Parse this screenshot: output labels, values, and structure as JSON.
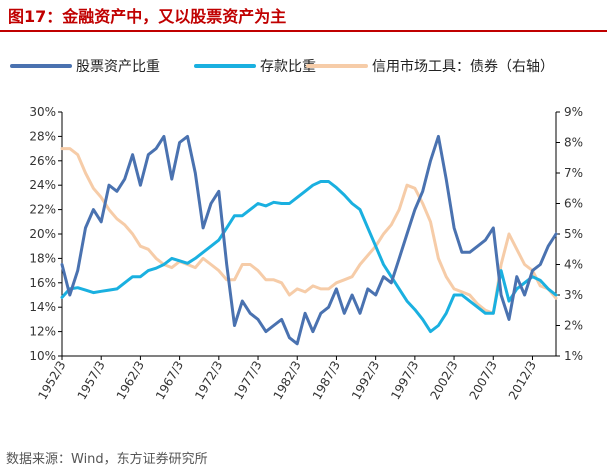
{
  "title": "图17：金融资产中，又以股票资产为主",
  "source": "数据来源：Wind，东方证券研究所",
  "chart_data": {
    "type": "line",
    "legend_position": "top",
    "grid": false,
    "x_range": [
      "1952/3",
      "2015/3"
    ],
    "x_tick_labels": [
      "1952/3",
      "1957/3",
      "1962/3",
      "1967/3",
      "1972/3",
      "1977/3",
      "1982/3",
      "1987/3",
      "1992/3",
      "1997/3",
      "2002/3",
      "2007/3",
      "2012/3"
    ],
    "y_left": {
      "min": 10,
      "max": 30,
      "step": 2,
      "tick_labels": [
        "10%",
        "12%",
        "14%",
        "16%",
        "18%",
        "20%",
        "22%",
        "24%",
        "26%",
        "28%",
        "30%"
      ]
    },
    "y_right": {
      "min": 1,
      "max": 9,
      "step": 1,
      "tick_labels": [
        "1%",
        "2%",
        "3%",
        "4%",
        "5%",
        "6%",
        "7%",
        "8%",
        "9%"
      ]
    },
    "series": [
      {
        "name": "股票资产比重",
        "axis": "left",
        "color": "#4a72b0",
        "x": [
          1952,
          1953,
          1954,
          1955,
          1956,
          1957,
          1958,
          1959,
          1960,
          1961,
          1962,
          1963,
          1964,
          1965,
          1966,
          1967,
          1968,
          1969,
          1970,
          1971,
          1972,
          1973,
          1974,
          1975,
          1976,
          1977,
          1978,
          1979,
          1980,
          1981,
          1982,
          1983,
          1984,
          1985,
          1986,
          1987,
          1988,
          1989,
          1990,
          1991,
          1992,
          1993,
          1994,
          1995,
          1996,
          1997,
          1998,
          1999,
          2000,
          2001,
          2002,
          2003,
          2004,
          2005,
          2006,
          2007,
          2008,
          2009,
          2010,
          2011,
          2012,
          2013,
          2014,
          2015
        ],
        "values": [
          17.5,
          15.0,
          17.0,
          20.5,
          22.0,
          21.0,
          24.0,
          23.5,
          24.5,
          26.5,
          24.0,
          26.5,
          27.0,
          28.0,
          24.5,
          27.5,
          28.0,
          25.0,
          20.5,
          22.5,
          23.5,
          17.5,
          12.5,
          14.5,
          13.5,
          13.0,
          12.0,
          12.5,
          13.0,
          11.5,
          11.0,
          13.5,
          12.0,
          13.5,
          14.0,
          15.5,
          13.5,
          15.0,
          13.5,
          15.5,
          15.0,
          16.5,
          16.0,
          18.0,
          20.0,
          22.0,
          23.5,
          26.0,
          28.0,
          24.5,
          20.5,
          18.5,
          18.5,
          19.0,
          19.5,
          20.5,
          15.0,
          13.0,
          16.5,
          15.0,
          17.0,
          17.5,
          19.0,
          20.0
        ]
      },
      {
        "name": "存款比重",
        "axis": "left",
        "color": "#1ab0e0",
        "x": [
          1952,
          1953,
          1954,
          1955,
          1956,
          1957,
          1958,
          1959,
          1960,
          1961,
          1962,
          1963,
          1964,
          1965,
          1966,
          1967,
          1968,
          1969,
          1970,
          1971,
          1972,
          1973,
          1974,
          1975,
          1976,
          1977,
          1978,
          1979,
          1980,
          1981,
          1982,
          1983,
          1984,
          1985,
          1986,
          1987,
          1988,
          1989,
          1990,
          1991,
          1992,
          1993,
          1994,
          1995,
          1996,
          1997,
          1998,
          1999,
          2000,
          2001,
          2002,
          2003,
          2004,
          2005,
          2006,
          2007,
          2008,
          2009,
          2010,
          2011,
          2012,
          2013,
          2014,
          2015
        ],
        "values": [
          14.8,
          15.5,
          15.6,
          15.4,
          15.2,
          15.3,
          15.4,
          15.5,
          16.0,
          16.5,
          16.5,
          17.0,
          17.2,
          17.5,
          18.0,
          17.8,
          17.6,
          18.0,
          18.5,
          19.0,
          19.5,
          20.5,
          21.5,
          21.5,
          22.0,
          22.5,
          22.3,
          22.6,
          22.5,
          22.5,
          23.0,
          23.5,
          24.0,
          24.3,
          24.3,
          23.8,
          23.2,
          22.5,
          22.0,
          20.5,
          19.0,
          17.5,
          16.5,
          15.5,
          14.5,
          13.8,
          13.0,
          12.0,
          12.5,
          13.5,
          15.0,
          15.0,
          14.5,
          14.0,
          13.5,
          13.5,
          17.0,
          14.5,
          15.5,
          16.0,
          16.5,
          16.2,
          15.5,
          15.0
        ]
      },
      {
        "name": "信用市场工具：债券（右轴）",
        "axis": "right",
        "color": "#f6cca8",
        "x": [
          1952,
          1953,
          1954,
          1955,
          1956,
          1957,
          1958,
          1959,
          1960,
          1961,
          1962,
          1963,
          1964,
          1965,
          1966,
          1967,
          1968,
          1969,
          1970,
          1971,
          1972,
          1973,
          1974,
          1975,
          1976,
          1977,
          1978,
          1979,
          1980,
          1981,
          1982,
          1983,
          1984,
          1985,
          1986,
          1987,
          1988,
          1989,
          1990,
          1991,
          1992,
          1993,
          1994,
          1995,
          1996,
          1997,
          1998,
          1999,
          2000,
          2001,
          2002,
          2003,
          2004,
          2005,
          2006,
          2007,
          2008,
          2009,
          2010,
          2011,
          2012,
          2013,
          2014,
          2015
        ],
        "values": [
          7.8,
          7.8,
          7.6,
          7.0,
          6.5,
          6.2,
          5.8,
          5.5,
          5.3,
          5.0,
          4.6,
          4.5,
          4.2,
          4.0,
          3.9,
          4.1,
          4.0,
          3.9,
          4.2,
          4.0,
          3.8,
          3.5,
          3.5,
          4.0,
          4.0,
          3.8,
          3.5,
          3.5,
          3.4,
          3.0,
          3.2,
          3.1,
          3.3,
          3.2,
          3.2,
          3.4,
          3.5,
          3.6,
          4.0,
          4.3,
          4.6,
          5.0,
          5.3,
          5.8,
          6.6,
          6.5,
          6.0,
          5.4,
          4.2,
          3.6,
          3.2,
          3.1,
          3.0,
          2.7,
          2.5,
          2.4,
          4.0,
          5.0,
          4.5,
          4.0,
          3.8,
          3.3,
          3.2,
          2.9
        ]
      }
    ]
  }
}
